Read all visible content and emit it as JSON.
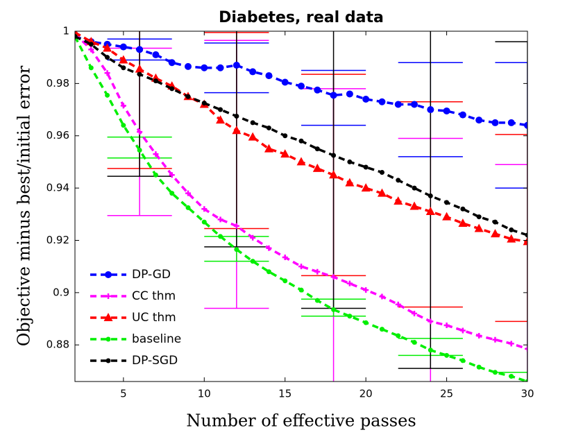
{
  "chart_data": {
    "type": "line",
    "title": "Diabetes, real data",
    "xlabel": "Number of effective passes",
    "ylabel": "Objective minus best/initial error",
    "x": [
      2,
      3,
      4,
      5,
      6,
      7,
      8,
      9,
      10,
      11,
      12,
      13,
      14,
      15,
      16,
      17,
      18,
      19,
      20,
      21,
      22,
      23,
      24,
      25,
      26,
      27,
      28,
      29,
      30
    ],
    "xlim": [
      2,
      30
    ],
    "xticks": [
      5,
      10,
      15,
      20,
      25,
      30
    ],
    "ylim": [
      0.866,
      1.0
    ],
    "yticks": [
      0.88,
      0.9,
      0.92,
      0.94,
      0.96,
      0.98,
      1
    ],
    "legend": "lower left",
    "error_x": [
      6,
      12,
      18,
      24,
      30
    ],
    "series": [
      {
        "name": "DP-GD",
        "color": "#0000ff",
        "marker": "circle",
        "values": [
          0.998,
          0.996,
          0.995,
          0.994,
          0.993,
          0.991,
          0.988,
          0.9865,
          0.986,
          0.986,
          0.987,
          0.9845,
          0.983,
          0.9805,
          0.979,
          0.9775,
          0.9755,
          0.976,
          0.974,
          0.973,
          0.972,
          0.972,
          0.97,
          0.9695,
          0.968,
          0.966,
          0.965,
          0.965,
          0.964
        ],
        "error_low": [
          0.989,
          0.9765,
          0.964,
          0.952,
          0.94
        ],
        "error_high": [
          0.997,
          0.9955,
          0.985,
          0.988,
          0.988
        ]
      },
      {
        "name": "CC thm",
        "color": "#ff00ff",
        "marker": "plus",
        "values": [
          0.999,
          0.993,
          0.984,
          0.9715,
          0.9615,
          0.953,
          0.945,
          0.938,
          0.932,
          0.928,
          0.9255,
          0.921,
          0.917,
          0.9135,
          0.91,
          0.908,
          0.906,
          0.9035,
          0.901,
          0.8985,
          0.8955,
          0.892,
          0.889,
          0.8875,
          0.8855,
          0.8835,
          0.882,
          0.8805,
          0.8785
        ],
        "error_low": [
          0.9295,
          0.894,
          0.865,
          0.86,
          0.86
        ],
        "error_high": [
          0.9935,
          0.9965,
          0.978,
          0.959,
          0.949
        ]
      },
      {
        "name": "UC thm",
        "color": "#ff0000",
        "marker": "triangle",
        "values": [
          0.9995,
          0.996,
          0.9935,
          0.989,
          0.9855,
          0.982,
          0.979,
          0.975,
          0.972,
          0.966,
          0.962,
          0.9595,
          0.955,
          0.953,
          0.95,
          0.9475,
          0.945,
          0.942,
          0.94,
          0.938,
          0.935,
          0.933,
          0.931,
          0.929,
          0.9265,
          0.9245,
          0.9225,
          0.9205,
          0.9195
        ],
        "error_low": [
          0.9475,
          0.9245,
          0.9065,
          0.8945,
          0.889
        ],
        "error_high": [
          1.0235,
          0.9995,
          0.9835,
          0.973,
          0.9605
        ]
      },
      {
        "name": "baseline",
        "color": "#00ee00",
        "marker": "dot",
        "values": [
          0.998,
          0.986,
          0.9755,
          0.964,
          0.9545,
          0.945,
          0.938,
          0.9325,
          0.927,
          0.9215,
          0.9165,
          0.912,
          0.908,
          0.9045,
          0.901,
          0.897,
          0.8935,
          0.891,
          0.8885,
          0.886,
          0.8835,
          0.881,
          0.878,
          0.876,
          0.874,
          0.8715,
          0.8695,
          0.868,
          0.866
        ],
        "error_low": [
          0.9515,
          0.912,
          0.891,
          0.876,
          0.8625
        ],
        "error_high": [
          0.9595,
          0.9215,
          0.8975,
          0.8825,
          0.8695
        ]
      },
      {
        "name": "DP-SGD",
        "color": "#000000",
        "marker": "dot",
        "values": [
          0.998,
          0.995,
          0.99,
          0.986,
          0.9835,
          0.981,
          0.978,
          0.975,
          0.9725,
          0.97,
          0.9675,
          0.965,
          0.963,
          0.96,
          0.958,
          0.955,
          0.9525,
          0.95,
          0.948,
          0.946,
          0.943,
          0.94,
          0.937,
          0.9345,
          0.932,
          0.929,
          0.927,
          0.924,
          0.922
        ],
        "error_low": [
          0.9445,
          0.9175,
          0.894,
          0.871,
          0.848
        ],
        "error_high": [
          1.022,
          1.017,
          1.011,
          1.003,
          0.996
        ]
      }
    ]
  }
}
